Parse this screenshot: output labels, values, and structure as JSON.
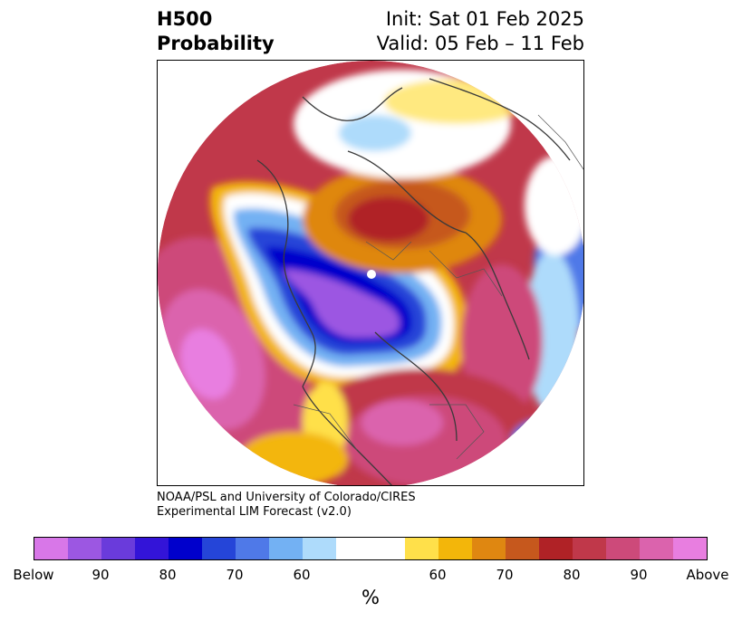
{
  "title": {
    "left_line1": "H500",
    "left_line2": "Probability",
    "right_line1": "Init: Sat 01 Feb 2025",
    "right_line2": "Valid: 05 Feb – 11 Feb"
  },
  "credit": {
    "line1": "NOAA/PSL and University of Colorado/CIRES",
    "line2": "Experimental LIM Forecast (v2.0)"
  },
  "colorbar": {
    "colors": [
      "#d877e8",
      "#9c57e2",
      "#6a3bdb",
      "#3314d8",
      "#0000cc",
      "#2545d8",
      "#4f79e8",
      "#73b1f3",
      "#aedbfb",
      "#ffffff",
      "#ffe04a",
      "#f3b60a",
      "#df8711",
      "#c6581d",
      "#b02226",
      "#c0384a",
      "#cd4a7a",
      "#db63ad",
      "#e87ee0"
    ],
    "ticks": [
      "Below",
      "90",
      "80",
      "70",
      "60",
      "60",
      "70",
      "80",
      "90",
      "Above"
    ],
    "unit": "%"
  },
  "map": {
    "projection": "north-polar-stereographic",
    "variable": "500 hPa height anomaly probability"
  }
}
